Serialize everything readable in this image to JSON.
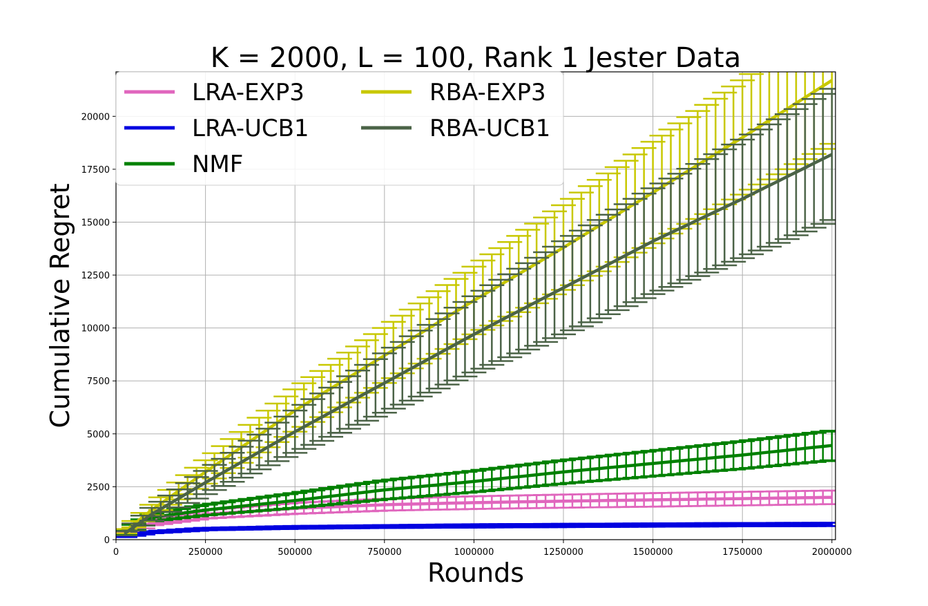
{
  "chart_data": {
    "type": "line",
    "title": "K = 2000, L = 100, Rank 1 Jester Data",
    "xlabel": "Rounds",
    "ylabel": "Cumulative Regret",
    "xlim": [
      0,
      2010000
    ],
    "ylim": [
      0,
      22100
    ],
    "xticks": [
      0,
      250000,
      500000,
      750000,
      1000000,
      1250000,
      1500000,
      1750000,
      2000000
    ],
    "xtick_labels": [
      "0",
      "250000",
      "500000",
      "750000",
      "1000000",
      "1250000",
      "1500000",
      "1750000",
      "2000000"
    ],
    "yticks": [
      0,
      2500,
      5000,
      7500,
      10000,
      12500,
      15000,
      17500,
      20000
    ],
    "ytick_labels": [
      "0",
      "2500",
      "5000",
      "7500",
      "10000",
      "12500",
      "15000",
      "17500",
      "20000"
    ],
    "grid": true,
    "legend_position": "top-left",
    "legend_columns": 2,
    "x_start": 25000,
    "x_end": 2000000,
    "x_step": 25000,
    "series": [
      {
        "name": "LRA-EXP3",
        "color": "#e066bd",
        "anchors_x": [
          25000,
          100000,
          250000,
          500000,
          750000,
          1000000,
          1250000,
          1500000,
          1750000,
          2000000
        ],
        "anchors_y": [
          300,
          800,
          1200,
          1480,
          1650,
          1750,
          1820,
          1880,
          1940,
          2000
        ],
        "err_anchors_y": [
          60,
          120,
          200,
          260,
          280,
          300,
          310,
          320,
          320,
          320
        ]
      },
      {
        "name": "LRA-UCB1",
        "color": "#0000e0",
        "anchors_x": [
          25000,
          100000,
          250000,
          500000,
          750000,
          1000000,
          1250000,
          1500000,
          1750000,
          2000000
        ],
        "anchors_y": [
          150,
          350,
          500,
          580,
          620,
          650,
          670,
          690,
          710,
          720
        ],
        "err_anchors_y": [
          30,
          50,
          60,
          70,
          70,
          80,
          80,
          80,
          80,
          80
        ]
      },
      {
        "name": "NMF",
        "color": "#008000",
        "anchors_x": [
          25000,
          100000,
          250000,
          500000,
          750000,
          1000000,
          1250000,
          1500000,
          1750000,
          2000000
        ],
        "anchors_y": [
          350,
          1050,
          1400,
          1850,
          2350,
          2750,
          3200,
          3600,
          4000,
          4450
        ],
        "err_anchors_y": [
          80,
          180,
          250,
          350,
          450,
          500,
          550,
          600,
          650,
          700
        ]
      },
      {
        "name": "RBA-EXP3",
        "color": "#c8c800",
        "anchors_x": [
          25000,
          100000,
          250000,
          500000,
          750000,
          1000000,
          1250000,
          1500000,
          1750000,
          2000000
        ],
        "anchors_y": [
          400,
          1400,
          3200,
          6100,
          8700,
          11300,
          13800,
          16400,
          19000,
          21700
        ],
        "err_anchors_y": [
          100,
          250,
          550,
          1000,
          1300,
          1600,
          2000,
          2400,
          2700,
          3000
        ]
      },
      {
        "name": "RBA-UCB1",
        "color": "#4b6347",
        "anchors_x": [
          25000,
          100000,
          250000,
          500000,
          750000,
          1000000,
          1250000,
          1500000,
          1750000,
          2000000
        ],
        "anchors_y": [
          300,
          1200,
          2700,
          5100,
          7400,
          9700,
          11900,
          14100,
          16100,
          18200
        ],
        "err_anchors_y": [
          100,
          300,
          550,
          1000,
          1400,
          1800,
          2200,
          2500,
          2800,
          3100
        ]
      }
    ]
  }
}
